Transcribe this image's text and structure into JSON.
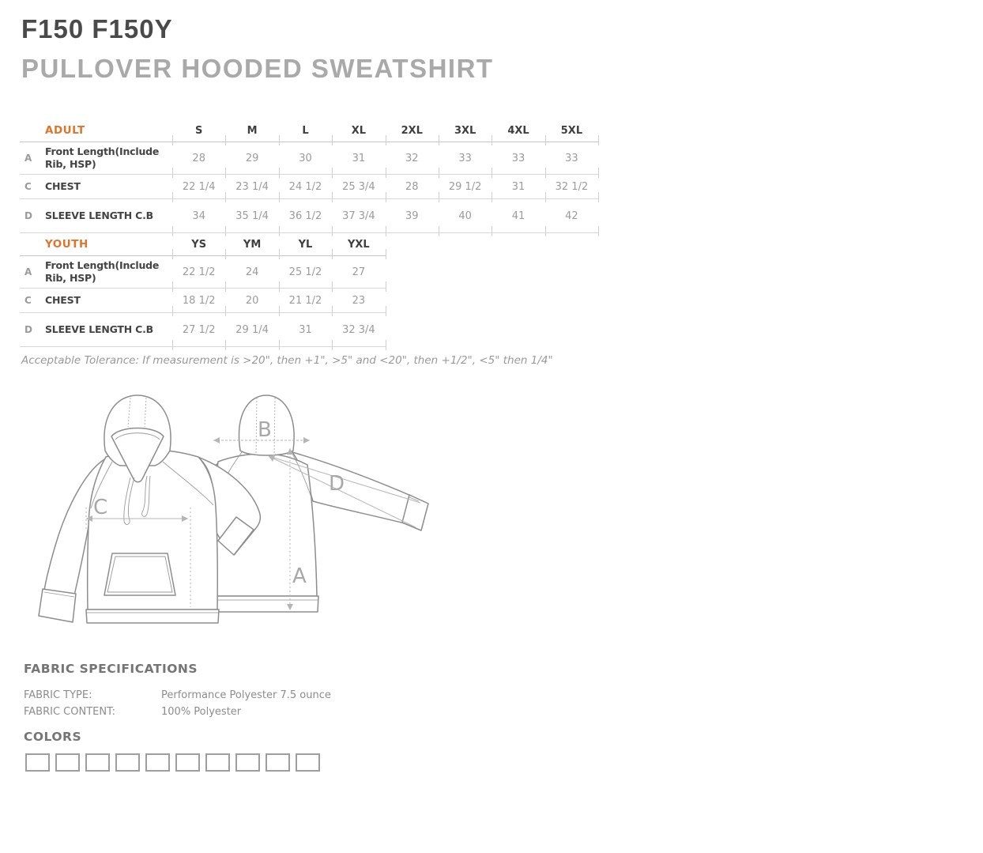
{
  "page": {
    "title": "F150 F150Y",
    "subtitle": "PULLOVER HOODED SWEATSHIRT"
  },
  "size_tables": [
    {
      "group_label": "ADULT",
      "sizes": [
        "S",
        "M",
        "L",
        "XL",
        "2XL",
        "3XL",
        "4XL",
        "5XL"
      ],
      "rows": [
        {
          "key": "A",
          "label": "Front Length(Include Rib, HSP)",
          "values": [
            "28",
            "29",
            "30",
            "31",
            "32",
            "33",
            "33",
            "33"
          ]
        },
        {
          "key": "C",
          "label": "CHEST",
          "values": [
            "22 1/4",
            "23 1/4",
            "24 1/2",
            "25 3/4",
            "28",
            "29 1/2",
            "31",
            "32 1/2"
          ]
        },
        {
          "key": "D",
          "label": "SLEEVE LENGTH C.B",
          "values": [
            "34",
            "35 1/4",
            "36 1/2",
            "37 3/4",
            "39",
            "40",
            "41",
            "42"
          ]
        }
      ]
    },
    {
      "group_label": "YOUTH",
      "sizes": [
        "YS",
        "YM",
        "YL",
        "YXL"
      ],
      "rows": [
        {
          "key": "A",
          "label": "Front Length(Include Rib, HSP)",
          "values": [
            "22 1/2",
            "24",
            "25 1/2",
            "27"
          ]
        },
        {
          "key": "C",
          "label": "CHEST",
          "values": [
            "18 1/2",
            "20",
            "21 1/2",
            "23"
          ]
        },
        {
          "key": "D",
          "label": "SLEEVE LENGTH C.B",
          "values": [
            "27 1/2",
            "29 1/4",
            "31",
            "32 3/4"
          ]
        }
      ]
    }
  ],
  "tolerance_note": "Acceptable Tolerance: If measurement is >20\", then +1\", >5\" and <20\", then +1/2\", <5\" then 1/4\"",
  "diagram": {
    "labels": {
      "a": "A",
      "b": "B",
      "c": "C",
      "d": "D"
    }
  },
  "fabric_specifications": {
    "heading": "FABRIC SPECIFICATIONS",
    "rows": [
      {
        "label": "FABRIC TYPE:",
        "value": "Performance Polyester 7.5 ounce"
      },
      {
        "label": "FABRIC CONTENT:",
        "value": "100% Polyester"
      }
    ]
  },
  "colors_section": {
    "heading": "COLORS",
    "swatch_count": 10,
    "swatch_fill": "#ffffff"
  },
  "palette": {
    "accent_orange": "#E0742E",
    "title_dark": "#4A4A4A",
    "subtitle_gray": "#A9A9A9",
    "value_gray": "#9B9B9B",
    "line_gray": "#D2D2D2"
  }
}
